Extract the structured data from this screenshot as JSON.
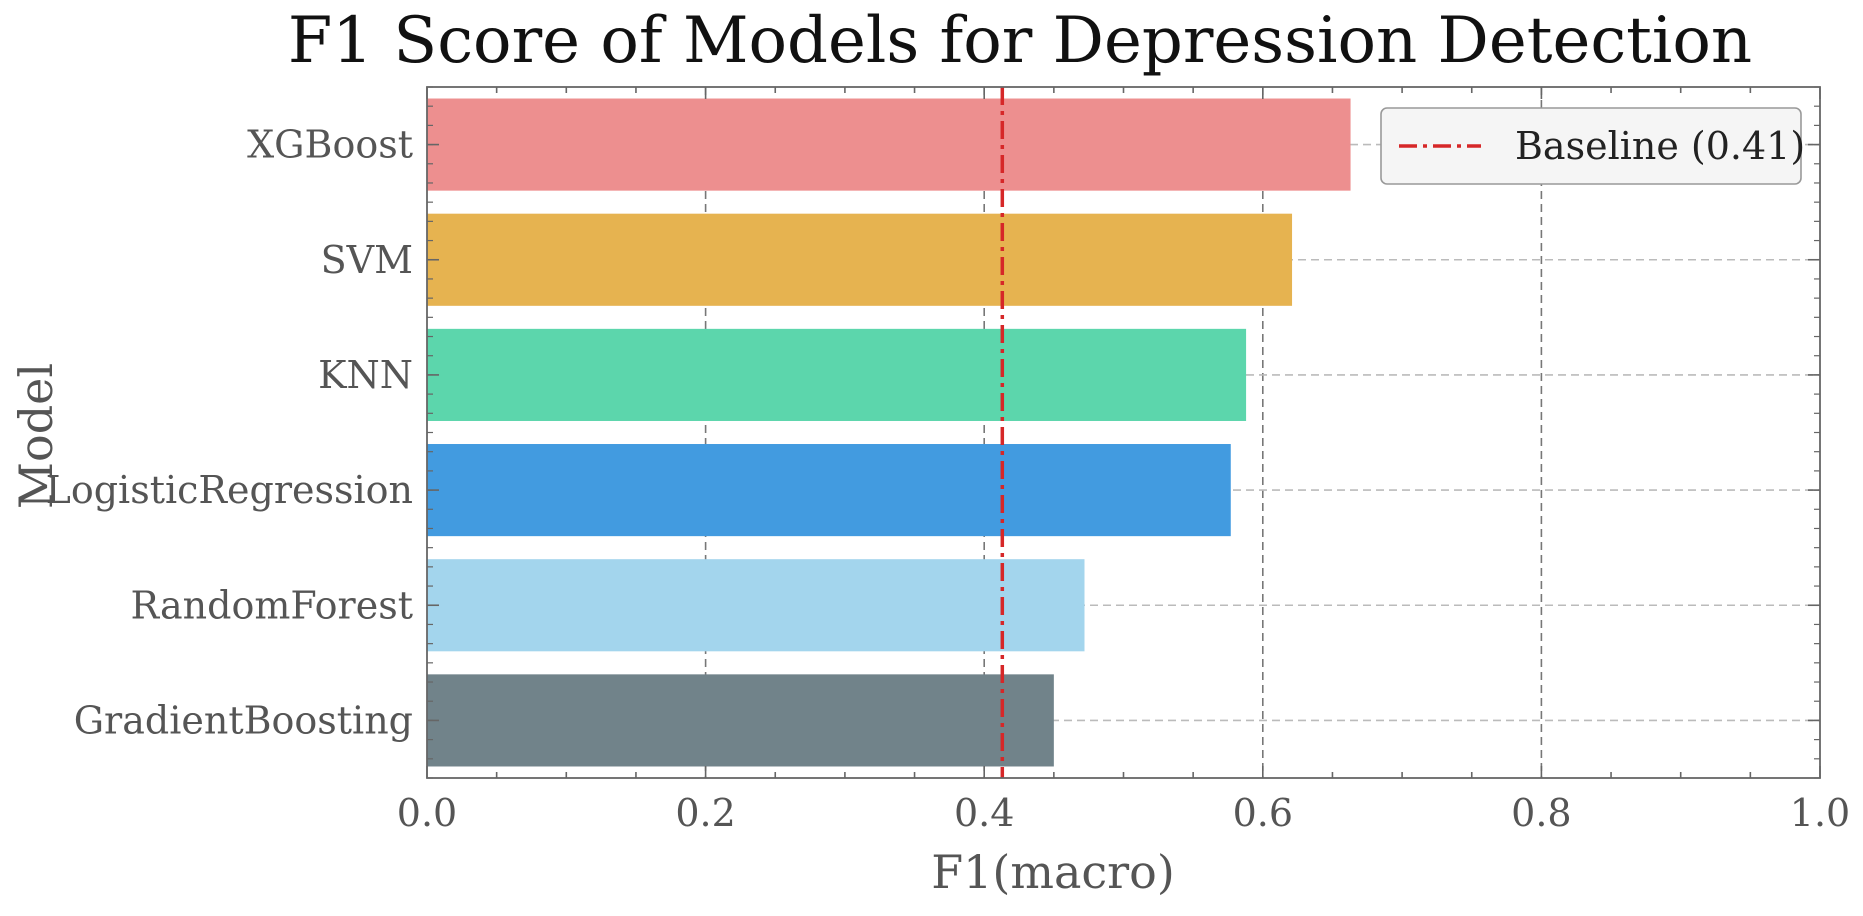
{
  "chart_data": {
    "type": "bar",
    "orientation": "horizontal",
    "title": "F1 Score of Models for Depression Detection",
    "xlabel": "F1(macro)",
    "ylabel": "Model",
    "xlim": [
      0.0,
      1.0
    ],
    "xticks": [
      "0.0",
      "0.2",
      "0.4",
      "0.6",
      "0.8",
      "1.0"
    ],
    "categories": [
      "XGBoost",
      "SVM",
      "KNN",
      "LogisticRegression",
      "RandomForest",
      "GradientBoosting"
    ],
    "values": [
      0.663,
      0.621,
      0.588,
      0.577,
      0.472,
      0.45
    ],
    "colors": [
      "#ed8f8f",
      "#e6b350",
      "#5cd6ac",
      "#429be0",
      "#a3d5ed",
      "#71838a"
    ],
    "baseline": {
      "label": "Baseline (0.41)",
      "value": 0.413,
      "color": "#d62728"
    },
    "legend_position": "top-right",
    "grid": true
  }
}
